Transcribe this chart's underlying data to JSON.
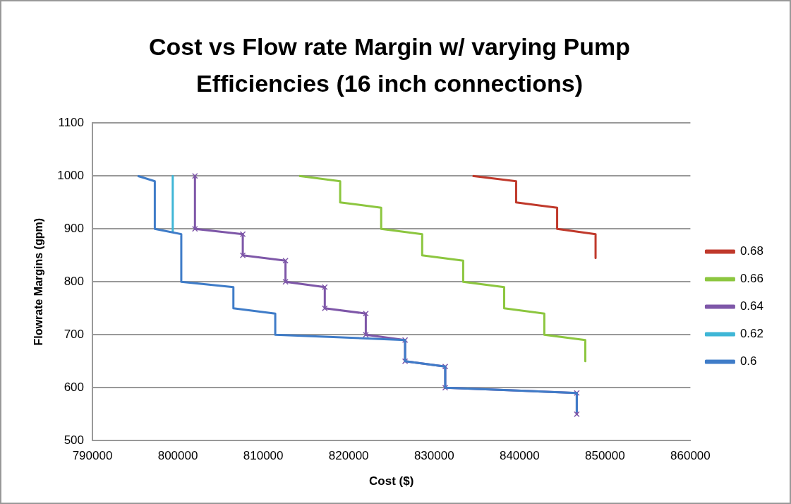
{
  "chart_data": {
    "type": "line",
    "title": "Cost vs Flow rate Margin w/ varying Pump Efficiencies (16 inch connections)",
    "xlabel": "Cost ($)",
    "ylabel": "Flowrate Margins (gpm)",
    "xlim": [
      790000,
      860000
    ],
    "xticks": [
      790000,
      800000,
      810000,
      820000,
      830000,
      840000,
      850000,
      860000
    ],
    "ylim": [
      500,
      1100
    ],
    "yticks": [
      500,
      600,
      700,
      800,
      900,
      1000,
      1100
    ],
    "grid": "y",
    "legend": "right",
    "marker": "none",
    "line_style": "solid",
    "series": [
      {
        "name": "0.68",
        "color": "#c0392b",
        "x": [
          834500,
          839600,
          839600,
          844400,
          844400,
          848900,
          848900
        ],
        "values": [
          1000,
          990,
          950,
          940,
          900,
          890,
          845
        ]
      },
      {
        "name": "0.66",
        "color": "#8cc63f",
        "x": [
          814200,
          819000,
          819000,
          823800,
          823800,
          828600,
          828600,
          833400,
          833400,
          838200,
          838200,
          842900,
          842900,
          847700,
          847700
        ],
        "values": [
          1000,
          990,
          950,
          940,
          900,
          890,
          850,
          840,
          800,
          790,
          750,
          740,
          700,
          690,
          650
        ]
      },
      {
        "name": "0.64",
        "color": "#7e57a8",
        "marker": "cross",
        "x": [
          802000,
          802000,
          807600,
          807600,
          812600,
          812600,
          817200,
          817200,
          822000,
          822000,
          826600,
          826600,
          831300,
          831300,
          846700,
          846700
        ],
        "values": [
          1000,
          900,
          890,
          850,
          840,
          800,
          790,
          750,
          740,
          700,
          690,
          650,
          640,
          600,
          590,
          550
        ]
      },
      {
        "name": "0.62",
        "color": "#3fb6d6",
        "x": [
          799400,
          799400
        ],
        "values": [
          1000,
          895
        ]
      },
      {
        "name": "0.6",
        "color": "#3f7cc8",
        "x": [
          795300,
          797300,
          797300,
          800400,
          800400,
          806500,
          806500,
          811400,
          811400,
          826600,
          826600,
          831300,
          831300,
          846700,
          846700
        ],
        "values": [
          1000,
          990,
          900,
          890,
          800,
          790,
          750,
          740,
          700,
          690,
          650,
          640,
          600,
          590,
          555
        ]
      }
    ]
  }
}
